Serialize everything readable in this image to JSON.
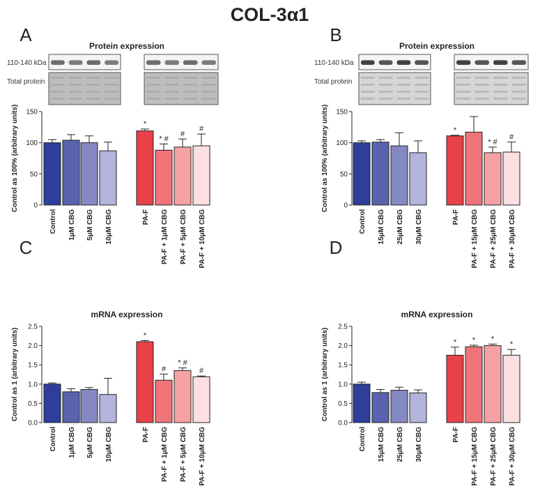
{
  "figure": {
    "title": "COL-3α1"
  },
  "colors": {
    "control": "#2e3e9a",
    "cbg_1": "#5a63ad",
    "cbg_2": "#8589c3",
    "cbg_3": "#b3b4dc",
    "pa_f": "#e84148",
    "pa_f_cbg_1": "#ef7479",
    "pa_f_cbg_2": "#f5a2a5",
    "pa_f_cbg_3": "#fcdfe0"
  },
  "blot": {
    "band_label": "110-140 kDa",
    "total_label": "Total protein"
  },
  "chart_data": [
    {
      "panel": "A",
      "type": "bar",
      "title": "Protein expression",
      "xlabel": "",
      "ylabel": "Control as 100% (arbitrary units)",
      "ylim": [
        0,
        150
      ],
      "yticks": [
        "0",
        "50",
        "100",
        "150"
      ],
      "categories": [
        "Control",
        "1μM CBG",
        "5μM CBG",
        "10μM CBG",
        "PA-F",
        "PA-F + 1μM CBG",
        "PA-F + 5μM CBG",
        "PA-F + 10μM CBG"
      ],
      "values": [
        100,
        104,
        100,
        87,
        119,
        88,
        93,
        95
      ],
      "errors": [
        5,
        9,
        11,
        14,
        3,
        10,
        13,
        19
      ],
      "annotations": [
        "",
        "",
        "",
        "",
        "*",
        "* #",
        "#",
        "#"
      ]
    },
    {
      "panel": "B",
      "type": "bar",
      "title": "Protein expression",
      "xlabel": "",
      "ylabel": "Control as 100% (arbitrary units)",
      "ylim": [
        0,
        150
      ],
      "yticks": [
        "0",
        "50",
        "100",
        "150"
      ],
      "categories": [
        "Control",
        "15μM CBG",
        "25μM CBG",
        "30μM CBG",
        "PA-F",
        "PA-F + 15μM CBG",
        "PA-F + 25μM CBG",
        "PA-F + 30μM CBG"
      ],
      "values": [
        100,
        101,
        95,
        84,
        111,
        117,
        84,
        85
      ],
      "errors": [
        3,
        4,
        21,
        19,
        1,
        25,
        9,
        16
      ],
      "annotations": [
        "",
        "",
        "",
        "",
        "*",
        "",
        "* #",
        "#"
      ]
    },
    {
      "panel": "C",
      "type": "bar",
      "title": "mRNA expression",
      "xlabel": "",
      "ylabel": "Control as 1 (arbitrary units)",
      "ylim": [
        0,
        2.5
      ],
      "yticks": [
        "0.0",
        "0.5",
        "1.0",
        "1.5",
        "2.0",
        "2.5"
      ],
      "categories": [
        "Control",
        "1μM CBG",
        "5μM CBG",
        "10μM CBG",
        "PA-F",
        "PA-F + 1μM CBG",
        "PA-F + 5μM CBG",
        "PA-F + 10μM CBG"
      ],
      "values": [
        1.0,
        0.8,
        0.86,
        0.73,
        2.1,
        1.1,
        1.35,
        1.19
      ],
      "errors": [
        0.03,
        0.08,
        0.05,
        0.42,
        0.03,
        0.16,
        0.07,
        0.02
      ],
      "annotations": [
        "",
        "",
        "",
        "",
        "*",
        "#",
        "* #",
        "#"
      ]
    },
    {
      "panel": "D",
      "type": "bar",
      "title": "mRNA expression",
      "xlabel": "",
      "ylabel": "Control as 1 (arbitrary units)",
      "ylim": [
        0,
        2.5
      ],
      "yticks": [
        "0.0",
        "0.5",
        "1.0",
        "1.5",
        "2.0",
        "2.5"
      ],
      "categories": [
        "Control",
        "15μM CBG",
        "25μM CBG",
        "30μM CBG",
        "PA-F",
        "PA-F + 15μM CBG",
        "PA-F + 25μM CBG",
        "PA-F + 30μM CBG"
      ],
      "values": [
        1.0,
        0.78,
        0.84,
        0.77,
        1.75,
        1.97,
        2.0,
        1.75
      ],
      "errors": [
        0.05,
        0.08,
        0.08,
        0.08,
        0.21,
        0.04,
        0.04,
        0.15
      ],
      "annotations": [
        "",
        "",
        "",
        "",
        "*",
        "*",
        "*",
        "*"
      ]
    }
  ]
}
